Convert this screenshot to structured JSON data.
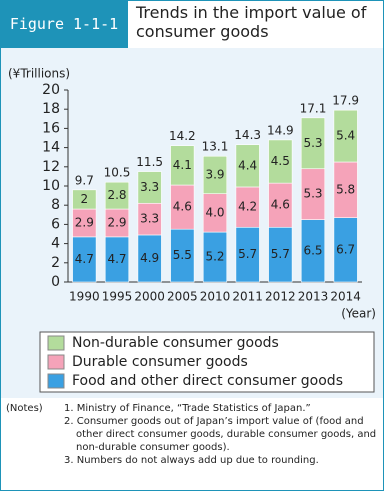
{
  "figure_label": "Figure 1-1-1",
  "chart_data": {
    "type": "stacked-bar",
    "title": "Trends in the import value of consumer goods",
    "y_label": "(¥Trillions)",
    "x_label": "(Year)",
    "categories": [
      "1990",
      "1995",
      "2000",
      "2005",
      "2010",
      "2011",
      "2012",
      "2013",
      "2014"
    ],
    "series": [
      {
        "name": "Food and other direct consumer goods",
        "color": "#3aa0e2",
        "values": [
          4.7,
          4.7,
          4.9,
          5.5,
          5.2,
          5.7,
          5.7,
          6.5,
          6.7
        ]
      },
      {
        "name": "Durable consumer goods",
        "color": "#f5a3b9",
        "values": [
          2.9,
          2.9,
          3.3,
          4.6,
          4.0,
          4.2,
          4.6,
          5.3,
          5.8
        ],
        "value_labels": [
          "2.9",
          "2.9",
          "3.3",
          "4.6",
          "4.0",
          "4.2",
          "4.6",
          "5.3",
          "5.8"
        ]
      },
      {
        "name": "Non-durable consumer goods",
        "color": "#b3dc9c",
        "values": [
          2.0,
          2.8,
          3.3,
          4.1,
          3.9,
          4.4,
          4.5,
          5.3,
          5.4
        ]
      }
    ],
    "totals": [
      9.7,
      10.5,
      11.5,
      14.2,
      13.1,
      14.3,
      14.9,
      17.1,
      17.9
    ],
    "ylim": [
      0,
      20
    ],
    "yticks": [
      0,
      2,
      4,
      6,
      8,
      10,
      12,
      14,
      16,
      18,
      20
    ]
  },
  "notes_label": "(Notes)",
  "notes": [
    "1. Ministry of Finance, “Trade Statistics of Japan.”",
    "2. Consumer goods out of Japan’s import value of (food and other direct consumer goods, durable consumer goods, and non-durable consumer goods).",
    "3. Numbers do not always add up due to rounding."
  ]
}
